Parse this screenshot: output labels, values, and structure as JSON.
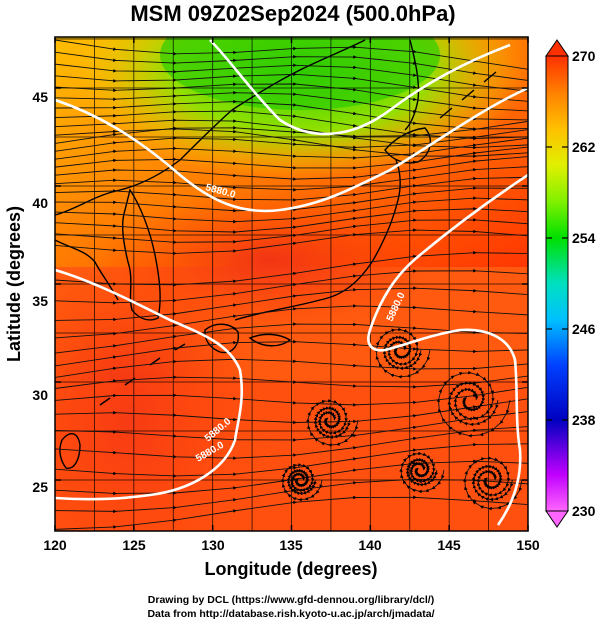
{
  "title": "MSM 09Z02Sep2024 (500.0hPa)",
  "xlabel": "Longitude (degrees)",
  "ylabel": "Latitude  (degrees)",
  "x_ticks": [
    "120",
    "125",
    "130",
    "135",
    "140",
    "145",
    "150"
  ],
  "y_ticks": [
    "25",
    "30",
    "35",
    "40",
    "45"
  ],
  "colorbar": {
    "ticks": [
      "270",
      "262",
      "254",
      "246",
      "238",
      "230"
    ],
    "range": [
      230,
      270
    ],
    "colors": [
      "#ff66ff",
      "#c000ff",
      "#0000c0",
      "#0040ff",
      "#00c0ff",
      "#00e0c0",
      "#00e000",
      "#80f000",
      "#e0f000",
      "#ffc000",
      "#ff8000",
      "#ff4000",
      "#ff2000"
    ]
  },
  "contours": {
    "labels": [
      "5880.0",
      "5880.0",
      "5880.0",
      "5880.0"
    ]
  },
  "credits": {
    "line1": "Drawing by DCL (https://www.gfd-dennou.org/library/dcl/)",
    "line2": "Data from http://database.rish.kyoto-u.ac.jp/arch/jmadata/"
  },
  "chart_data": {
    "type": "heatmap",
    "title": "MSM 09Z02Sep2024 (500.0hPa)",
    "xlabel": "Longitude (degrees)",
    "ylabel": "Latitude  (degrees)",
    "xlim": [
      120,
      150
    ],
    "ylim": [
      22.4,
      47.6
    ],
    "x_ticks": [
      120,
      125,
      130,
      135,
      140,
      145,
      150
    ],
    "y_ticks": [
      25,
      30,
      35,
      40,
      45
    ],
    "colorbar_range": [
      230,
      270
    ],
    "colorbar_ticks": [
      270,
      262,
      254,
      246,
      238,
      230
    ],
    "overlay": [
      "streamlines",
      "coastlines",
      "lat/lon grid",
      "white 5880.0 contours"
    ],
    "grid": true
  }
}
